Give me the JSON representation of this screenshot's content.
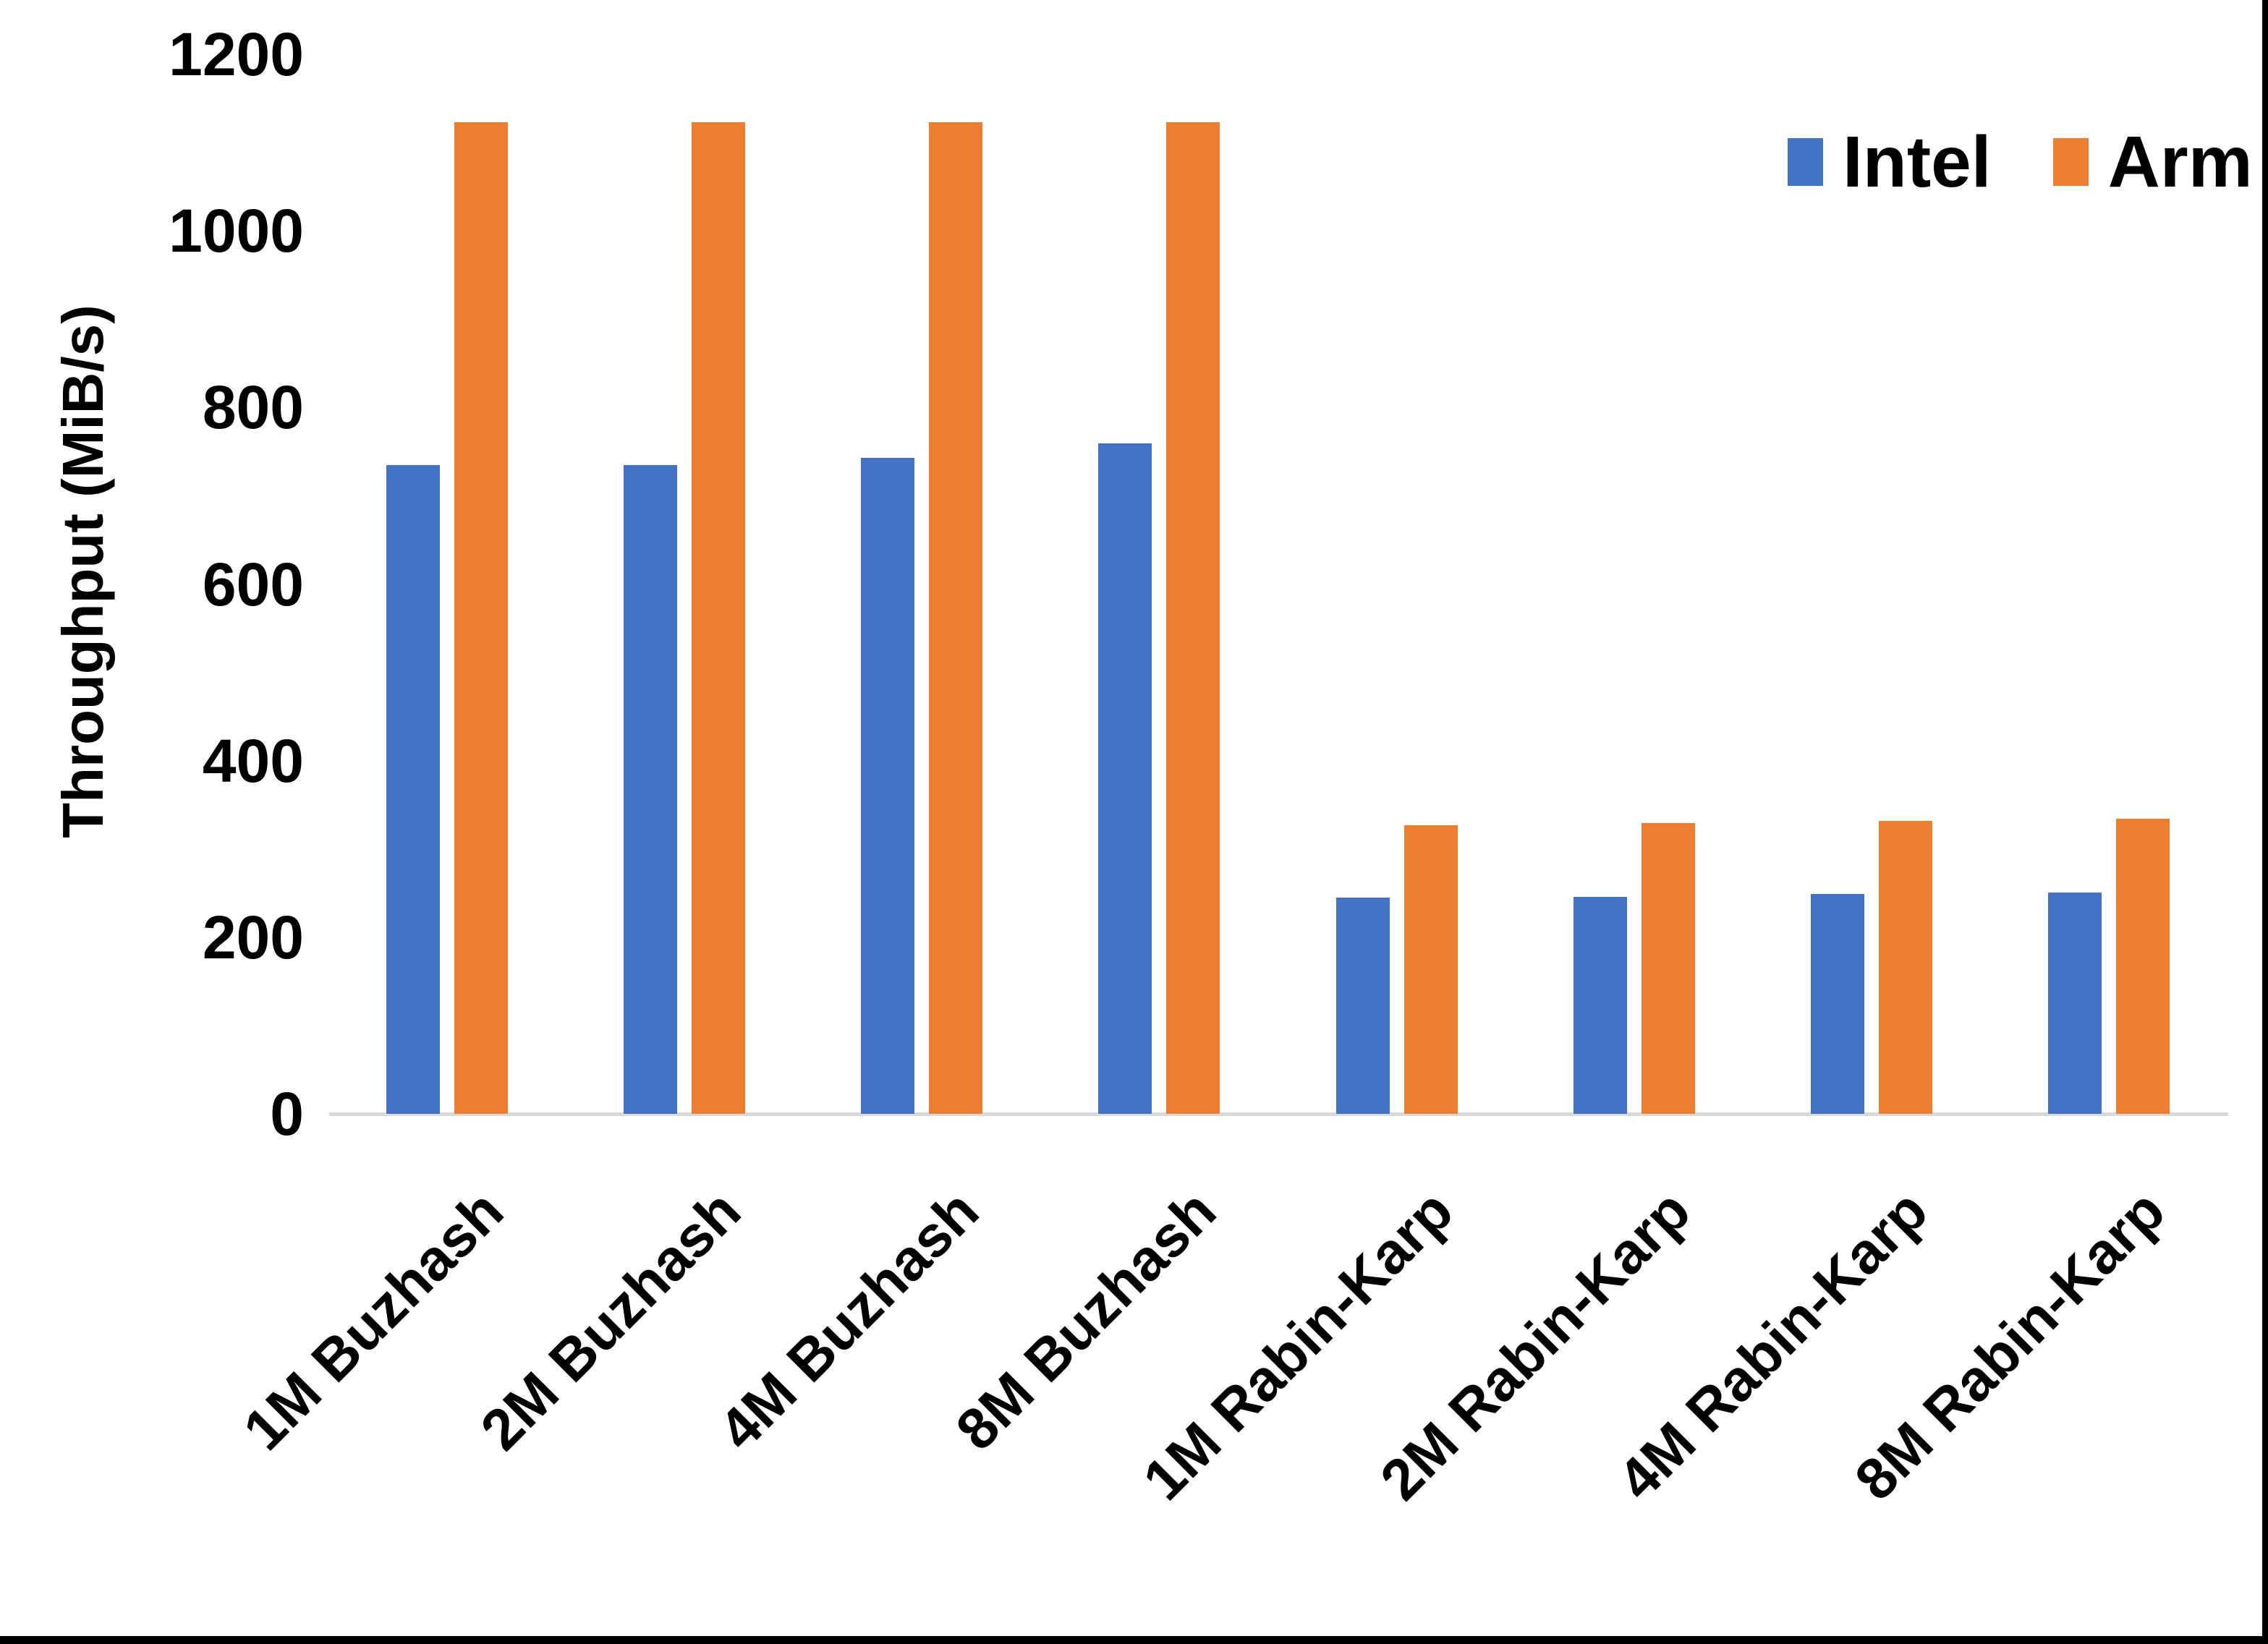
{
  "chart_data": {
    "type": "bar",
    "title": "",
    "xlabel": "",
    "ylabel": "Throughput (MiB/s)",
    "categories": [
      "1M Buzhash",
      "2M Buzhash",
      "4M Buzhash",
      "8M Buzhash",
      "1M Rabin-Karp",
      "2M Rabin-Karp",
      "4M Rabin-Karp",
      "8M Rabin-Karp"
    ],
    "series": [
      {
        "name": "Intel",
        "color": "#4472C4",
        "values": [
          735,
          735,
          743,
          759,
          245,
          246,
          249,
          251
        ]
      },
      {
        "name": "Arm",
        "color": "#ED7D31",
        "values": [
          1123,
          1123,
          1123,
          1123,
          327,
          329,
          332,
          334
        ]
      }
    ],
    "ylim": [
      0,
      1200
    ],
    "yticks": [
      0,
      200,
      400,
      600,
      800,
      1000,
      1200
    ],
    "grid": false,
    "legend_position": "top-right",
    "axis_line_color": "#D9D9D9",
    "text_color": "#000000"
  }
}
